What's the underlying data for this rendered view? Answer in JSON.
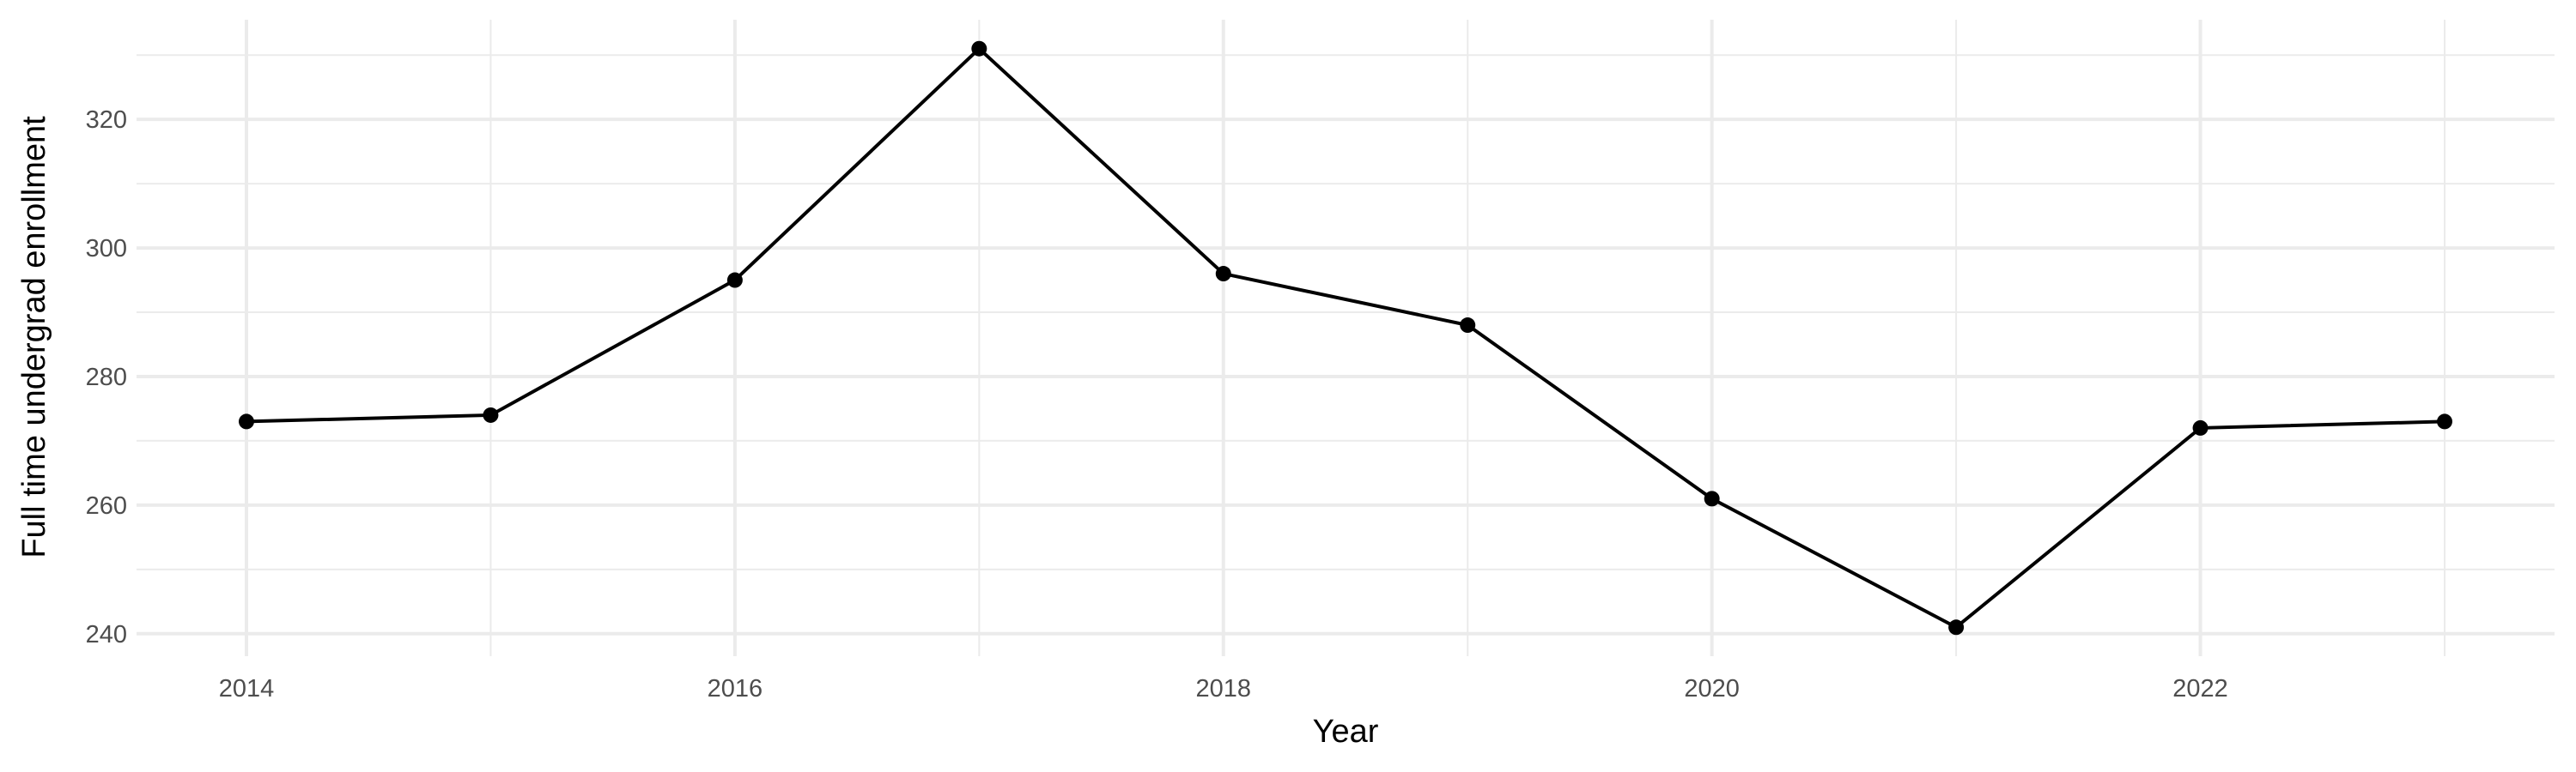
{
  "chart_data": {
    "type": "line",
    "title": "",
    "xlabel": "Year",
    "ylabel": "Full time undergrad enrollment",
    "x": [
      2014,
      2015,
      2016,
      2017,
      2018,
      2019,
      2020,
      2021,
      2022,
      2023
    ],
    "values": [
      273,
      274,
      295,
      331,
      296,
      288,
      261,
      241,
      272,
      273
    ],
    "xlim": [
      2013.55,
      2023.45
    ],
    "ylim": [
      236.5,
      335.5
    ],
    "xticks": [
      "2014",
      "2016",
      "2018",
      "2020",
      "2022"
    ],
    "yticks": [
      "240",
      "260",
      "280",
      "300",
      "320"
    ],
    "grid": true,
    "markers": true,
    "line_color": "#000000",
    "grid_color": "#ebebeb"
  }
}
